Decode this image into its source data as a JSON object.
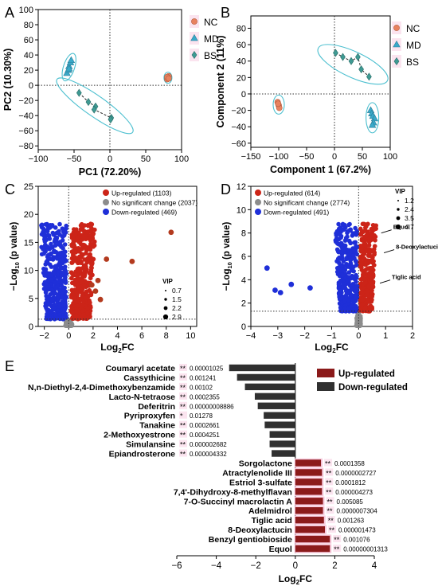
{
  "panels": {
    "A": "A",
    "B": "B",
    "C": "C",
    "D": "D",
    "E": "E"
  },
  "colors": {
    "NC": "#e8825f",
    "MD": "#3aa9c9",
    "BS": "#3f9a93",
    "up": "#cc2418",
    "nochange": "#8c8c8c",
    "down": "#1f2fd8",
    "upBar": "#8b1a1a",
    "downBar": "#303030",
    "ellipse": "#4bbfcf"
  },
  "chart_data": [
    {
      "panel": "A",
      "type": "scatter",
      "xlabel": "PC1 (72.20%)",
      "ylabel": "PC2 (10.30%)",
      "xlim": [
        -100,
        100
      ],
      "ylim": [
        -85,
        100
      ],
      "xticks": [
        -100,
        -50,
        0,
        50,
        100
      ],
      "yticks": [
        -80,
        -60,
        -40,
        -20,
        0,
        20,
        40,
        60,
        80,
        100
      ],
      "legend": [
        "NC",
        "MD",
        "BS"
      ],
      "series": [
        {
          "name": "NC",
          "marker": "circle",
          "points": [
            [
              80,
              8
            ],
            [
              81,
              10
            ],
            [
              82,
              12
            ],
            [
              80,
              11
            ],
            [
              82,
              9
            ]
          ]
        },
        {
          "name": "MD",
          "marker": "triangle",
          "points": [
            [
              -60,
              16
            ],
            [
              -58,
              20
            ],
            [
              -57,
              25
            ],
            [
              -55,
              30
            ],
            [
              -54,
              33
            ],
            [
              -57,
              22
            ]
          ]
        },
        {
          "name": "BS",
          "marker": "diamond",
          "points": [
            [
              -43,
              -10
            ],
            [
              -30,
              -22
            ],
            [
              -20,
              -28
            ],
            [
              -22,
              -32
            ],
            [
              2,
              -43
            ],
            [
              1,
              -45
            ]
          ]
        }
      ]
    },
    {
      "panel": "B",
      "type": "scatter",
      "xlabel": "Component 1 (67.2%)",
      "ylabel": "Component 2 (11%)",
      "xlim": [
        -150,
        100
      ],
      "ylim": [
        -65,
        95
      ],
      "xticks": [
        -150,
        -100,
        -50,
        0,
        50,
        100
      ],
      "yticks": [
        -60,
        -40,
        -20,
        0,
        20,
        40,
        60,
        80
      ],
      "legend": [
        "NC",
        "MD",
        "BS"
      ],
      "series": [
        {
          "name": "NC",
          "marker": "circle",
          "points": [
            [
              -102,
              -10
            ],
            [
              -100,
              -14
            ],
            [
              -99,
              -17
            ],
            [
              -101,
              -12
            ]
          ]
        },
        {
          "name": "MD",
          "marker": "triangle",
          "points": [
            [
              65,
              -20
            ],
            [
              67,
              -24
            ],
            [
              69,
              -27
            ],
            [
              72,
              -30
            ],
            [
              70,
              -35
            ],
            [
              68,
              -38
            ]
          ]
        },
        {
          "name": "BS",
          "marker": "diamond",
          "points": [
            [
              2,
              50
            ],
            [
              15,
              45
            ],
            [
              30,
              40
            ],
            [
              42,
              45
            ],
            [
              48,
              30
            ],
            [
              62,
              21
            ]
          ]
        }
      ]
    },
    {
      "panel": "C",
      "type": "scatter",
      "xlabel": "Log2FC",
      "ylabel": "-Log10 (p value)",
      "xlim": [
        -2.5,
        10.5
      ],
      "ylim": [
        0,
        25
      ],
      "xticks": [
        -2,
        0,
        2,
        4,
        6,
        8,
        10
      ],
      "yticks": [
        0,
        5,
        10,
        15,
        20,
        25
      ],
      "threshold_y": 1.3,
      "legend": [
        {
          "name": "Up-regulated",
          "count": 1103
        },
        {
          "name": "No significant change",
          "count": 2037
        },
        {
          "name": "Down-regulated",
          "count": 469
        }
      ],
      "vip_title": "VIP",
      "vip_sizes": [
        0.7,
        1.5,
        2.2,
        2.9
      ],
      "highlight_points": [
        [
          8.4,
          16.8
        ],
        [
          5.2,
          11.6
        ],
        [
          3.1,
          12.0
        ],
        [
          2.4,
          8.2
        ],
        [
          1.9,
          7.4
        ],
        [
          2.2,
          6.3
        ],
        [
          2.6,
          4.8
        ]
      ]
    },
    {
      "panel": "D",
      "type": "scatter",
      "xlabel": "Log2FC",
      "ylabel": "-Log10 (p value)",
      "xlim": [
        -4,
        2
      ],
      "ylim": [
        0,
        12
      ],
      "xticks": [
        -4,
        -3,
        -2,
        -1,
        0,
        1,
        2
      ],
      "yticks": [
        0,
        2,
        4,
        6,
        8,
        10,
        12
      ],
      "threshold_y": 1.3,
      "legend": [
        {
          "name": "Up-regulated",
          "count": 614
        },
        {
          "name": "No significant change",
          "count": 2774
        },
        {
          "name": "Down-regulated",
          "count": 491
        }
      ],
      "vip_title": "VIP",
      "vip_sizes": [
        1.2,
        2.4,
        3.5,
        4.7
      ],
      "annotations": [
        {
          "label": "Equol",
          "x": 0.75,
          "y": 8.0
        },
        {
          "label": "8-Deoxylactucin",
          "x": 0.85,
          "y": 6.3
        },
        {
          "label": "Tiglic acid",
          "x": 0.7,
          "y": 3.7
        }
      ],
      "highlight_points": [
        [
          -3.4,
          5.0
        ],
        [
          -2.9,
          2.9
        ],
        [
          -3.1,
          3.1
        ],
        [
          -2.5,
          3.6
        ],
        [
          -1.8,
          3.3
        ]
      ]
    },
    {
      "panel": "E",
      "type": "bar",
      "orientation": "horizontal",
      "xlabel": "Log2FC",
      "xlim": [
        -6,
        4
      ],
      "xticks": [
        -6,
        -4,
        -2,
        0,
        2,
        4
      ],
      "legend": [
        "Up-regulated",
        "Down-regulated"
      ],
      "bars": [
        {
          "name": "Coumaryl acetate",
          "value": -3.35,
          "p": "0.00001025",
          "stars": "**"
        },
        {
          "name": "Cassythicine",
          "value": -2.95,
          "p": "0.001241",
          "stars": "**"
        },
        {
          "name": "N,n-Diethyl-2,4-Dimethoxybenzamide",
          "value": -2.55,
          "p": "0.00102",
          "stars": "**"
        },
        {
          "name": "Lacto-N-tetraose",
          "value": -2.05,
          "p": "0.0002355",
          "stars": "**"
        },
        {
          "name": "Deferitrin",
          "value": -1.9,
          "p": "0.00000008886",
          "stars": "**"
        },
        {
          "name": "Pyriproxyfen",
          "value": -1.6,
          "p": "0.01278",
          "stars": "*"
        },
        {
          "name": "Tanakine",
          "value": -1.55,
          "p": "0.0002661",
          "stars": "**"
        },
        {
          "name": "2-Methoxyestrone",
          "value": -1.3,
          "p": "0.0004251",
          "stars": "**"
        },
        {
          "name": "Simulansine",
          "value": -1.3,
          "p": "0.000002682",
          "stars": "**"
        },
        {
          "name": "Epiandrosterone",
          "value": -1.2,
          "p": "0.000004332",
          "stars": "**"
        },
        {
          "name": "Sorgolactone",
          "value": 1.3,
          "p": "0.0001358",
          "stars": "**"
        },
        {
          "name": "Atractylenolide III",
          "value": 1.35,
          "p": "0.0000002727",
          "stars": "**"
        },
        {
          "name": "Estriol 3-sulfate",
          "value": 1.35,
          "p": "0.0001812",
          "stars": "**"
        },
        {
          "name": "7,4'-Dihydroxy-8-methylflavan",
          "value": 1.35,
          "p": "0.000004273",
          "stars": "**"
        },
        {
          "name": "7-O-Succinyl macrolactin A",
          "value": 1.4,
          "p": "0.005085",
          "stars": "**"
        },
        {
          "name": "Adelmidrol",
          "value": 1.4,
          "p": "0.0000007304",
          "stars": "**"
        },
        {
          "name": "Tiglic acid",
          "value": 1.45,
          "p": "0.001263",
          "stars": "**"
        },
        {
          "name": "8-Deoxylactucin",
          "value": 1.5,
          "p": "0.000001473",
          "stars": "**"
        },
        {
          "name": "Benzyl gentiobioside",
          "value": 1.75,
          "p": "0.001076",
          "stars": "**"
        },
        {
          "name": "Equol",
          "value": 1.75,
          "p": "0.00000001313",
          "stars": "**"
        }
      ]
    }
  ]
}
